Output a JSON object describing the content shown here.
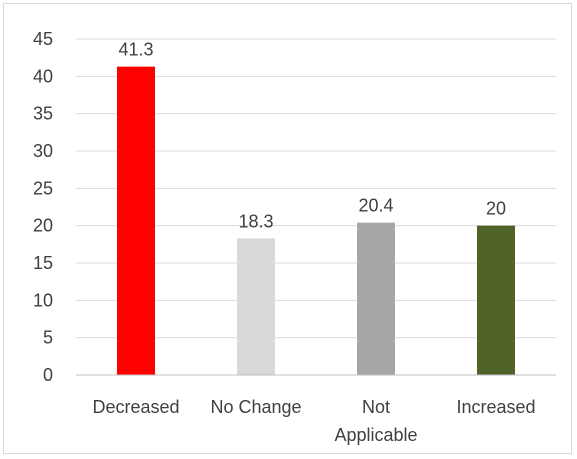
{
  "chart_data": {
    "type": "bar",
    "title": "",
    "xlabel": "",
    "ylabel": "",
    "categories": [
      [
        "Decreased"
      ],
      [
        "No Change"
      ],
      [
        "Not",
        "Applicable"
      ],
      [
        "Increased"
      ]
    ],
    "values": [
      41.3,
      18.3,
      20.4,
      20
    ],
    "data_labels": [
      "41.3",
      "18.3",
      "20.4",
      "20"
    ],
    "bar_colors": [
      "#ff0000",
      "#d9d9d9",
      "#a6a6a6",
      "#4f6228"
    ],
    "ylim": [
      0,
      45
    ],
    "yticks": [
      0,
      5,
      10,
      15,
      20,
      25,
      30,
      35,
      40,
      45
    ],
    "grid": true,
    "legend": "none"
  }
}
